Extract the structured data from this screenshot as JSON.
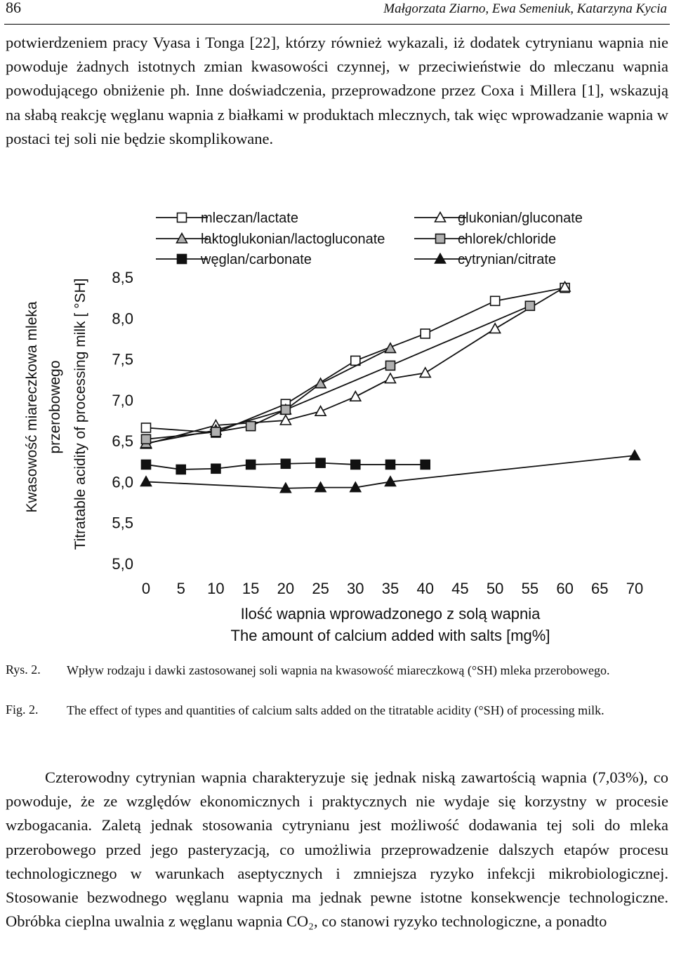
{
  "header": {
    "page_number": "86",
    "authors": "Małgorzata Ziarno, Ewa Semeniuk, Katarzyna Kycia"
  },
  "paragraph_top": "potwierdzeniem pracy Vyasa i Tonga [22], którzy również wykazali, iż dodatek cytrynianu wapnia nie powoduje żadnych istotnych zmian kwasowości czynnej, w przeciwieństwie do mleczanu wapnia powodującego obniżenie ph. Inne doświadczenia, przeprowadzone przez Coxa i Millera [1], wskazują na słabą reakcję węglanu wapnia z białkami w produktach mlecznych, tak więc wprowadzanie wapnia w postaci tej soli nie będzie skomplikowane.",
  "chart_data": {
    "type": "line",
    "title": "",
    "xlabel_pl": "Ilość wapnia wprowadzonego z solą wapnia",
    "xlabel_en": "The amount of calcium added with salts [mg%]",
    "ylabel_pl_line1": "Kwasowość miareczkowa mleka",
    "ylabel_pl_line2": "przerobowego",
    "ylabel_en": "Titratable acidity of processing milk [ °SH]",
    "xlim": [
      0,
      70
    ],
    "ylim": [
      5.0,
      8.5
    ],
    "x_ticks": [
      "0",
      "5",
      "10",
      "15",
      "20",
      "25",
      "30",
      "35",
      "40",
      "45",
      "50",
      "55",
      "60",
      "65",
      "70"
    ],
    "y_ticks": [
      "5,0",
      "5,5",
      "6,0",
      "6,5",
      "7,0",
      "7,5",
      "8,0",
      "8,5"
    ],
    "legend_position": "top",
    "series": [
      {
        "name": "mleczan/lactate",
        "marker": "square-open",
        "x": [
          0,
          10,
          20,
          30,
          40,
          50,
          60
        ],
        "y": [
          6.66,
          6.6,
          6.95,
          7.48,
          7.81,
          8.21,
          8.37
        ]
      },
      {
        "name": "glukonian/gluconate",
        "marker": "triangle-open",
        "x": [
          0,
          10,
          20,
          25,
          30,
          35,
          40,
          50,
          60
        ],
        "y": [
          6.46,
          6.69,
          6.75,
          6.86,
          7.04,
          7.26,
          7.33,
          7.87,
          8.38
        ]
      },
      {
        "name": "laktoglukonian/lactogluconate",
        "marker": "triangle-gray",
        "x": [
          0,
          10,
          20,
          25,
          35
        ],
        "y": [
          6.47,
          6.63,
          6.88,
          7.2,
          7.63
        ]
      },
      {
        "name": "chlorek/chloride",
        "marker": "square-gray",
        "x": [
          0,
          10,
          15,
          20,
          35,
          55
        ],
        "y": [
          6.52,
          6.61,
          6.68,
          6.88,
          7.42,
          8.15
        ]
      },
      {
        "name": "węglan/carbonate",
        "marker": "square-filled",
        "x": [
          0,
          5,
          10,
          15,
          20,
          25,
          30,
          35,
          40
        ],
        "y": [
          6.21,
          6.15,
          6.16,
          6.21,
          6.22,
          6.23,
          6.21,
          6.21,
          6.21
        ]
      },
      {
        "name": "cytrynian/citrate",
        "marker": "triangle-filled",
        "x": [
          0,
          20,
          25,
          30,
          35,
          70
        ],
        "y": [
          6.0,
          5.92,
          5.93,
          5.93,
          6.0,
          6.32
        ]
      }
    ]
  },
  "captions": {
    "pl_label": "Rys. 2.",
    "pl_text": "Wpływ rodzaju i dawki zastosowanej soli wapnia na kwasowość miareczkową (°SH) mleka przerobowego.",
    "en_label": "Fig. 2.",
    "en_text": "The effect of types and quantities of calcium salts added on the titratable acidity (°SH) of processing milk."
  },
  "paragraph_bottom": "Czterowodny cytrynian wapnia charakteryzuje się jednak niską zawartością wapnia (7,03%), co powoduje, że ze względów ekonomicznych i praktycznych nie wydaje się korzystny w procesie wzbogacania. Zaletą jednak stosowania cytrynianu jest możliwość dodawania tej soli do mleka przerobowego przed jego pasteryzacją, co umożliwia przeprowadzenie dalszych etapów procesu technologicznego w warunkach aseptycznych i zmniejsza ryzyko infekcji mikrobiologicznej. Stosowanie bezwodnego węglanu wapnia ma jednak pewne istotne konsekwencje technologiczne. Obróbka cieplna uwalnia z węglanu wapnia CO₂, co stanowi ryzyko technologiczne, a ponadto"
}
